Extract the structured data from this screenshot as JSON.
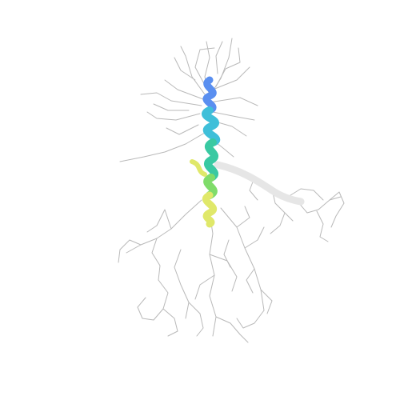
{
  "scene": {
    "subject": "protein-ribbon-structure",
    "background_color": "#ffffff",
    "sidechain_color": "#b9b9b9",
    "ribbon_colors": {
      "helix_top": "#5a8ff0",
      "helix_upper": "#3fbfd9",
      "helix_mid": "#39c9a2",
      "helix_lower": "#7fdc6a",
      "helix_bottom": "#e0e86a",
      "loop_right": "#e6e6e6"
    }
  }
}
